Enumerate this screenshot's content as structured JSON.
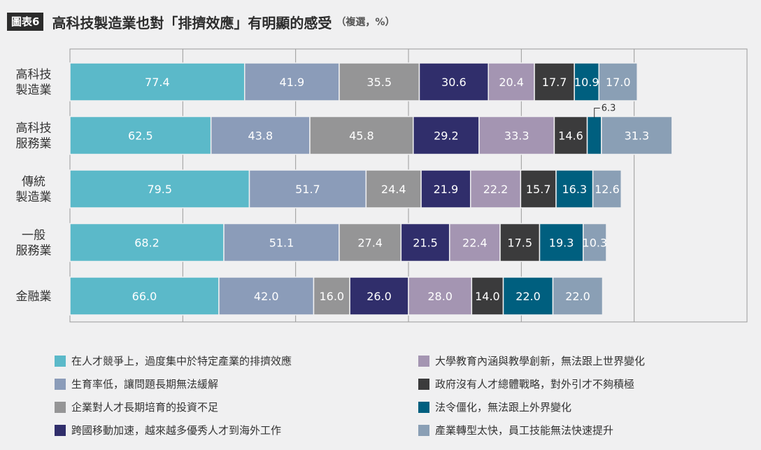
{
  "header": {
    "figure_label": "圖表6",
    "title": "高科技製造業也對「排擠效應」有明顯的感受",
    "subtitle": "（複選，%）"
  },
  "chart_data": {
    "type": "bar",
    "orientation": "horizontal",
    "stacked": true,
    "categories": [
      "高科技\n製造業",
      "高科技\n服務業",
      "傳統\n製造業",
      "一般\n服務業",
      "金融業"
    ],
    "series": [
      {
        "name": "在人才競爭上，過度集中於特定產業的排擠效應",
        "color": "#5bb9c9",
        "values": [
          77.4,
          62.5,
          79.5,
          68.2,
          66.0
        ]
      },
      {
        "name": "生育率低，讓問題長期無法緩解",
        "color": "#8b9cb9",
        "values": [
          41.9,
          43.8,
          51.7,
          51.1,
          42.0
        ]
      },
      {
        "name": "企業對人才長期培育的投資不足",
        "color": "#959596",
        "values": [
          35.5,
          45.8,
          24.4,
          27.4,
          16.0
        ]
      },
      {
        "name": "跨國移動加速，越來越多優秀人才到海外工作",
        "color": "#302e6b",
        "values": [
          30.6,
          29.2,
          21.9,
          21.5,
          26.0
        ]
      },
      {
        "name": "大學教育內涵與教學創新，無法跟上世界變化",
        "color": "#a495b2",
        "values": [
          20.4,
          33.3,
          22.2,
          22.4,
          28.0
        ]
      },
      {
        "name": "政府沒有人才總體戰略，對外引才不夠積極",
        "color": "#3b3b3c",
        "values": [
          17.7,
          14.6,
          15.7,
          17.5,
          14.0
        ]
      },
      {
        "name": "法令僵化，無法跟上外界變化",
        "color": "#005f7f",
        "values": [
          10.9,
          6.3,
          16.3,
          19.3,
          22.0
        ]
      },
      {
        "name": "產業轉型太快，員工技能無法快速提升",
        "color": "#8a9fb5",
        "values": [
          17.0,
          31.3,
          12.6,
          10.3,
          22.0
        ]
      }
    ],
    "value_labels": [
      [
        "77.4",
        "41.9",
        "35.5",
        "30.6",
        "20.4",
        "17.7",
        "10.9",
        "17.0"
      ],
      [
        "62.5",
        "43.8",
        "45.8",
        "29.2",
        "33.3",
        "14.6",
        "6.3",
        "31.3"
      ],
      [
        "79.5",
        "51.7",
        "24.4",
        "21.9",
        "22.2",
        "15.7",
        "16.3",
        "12.6"
      ],
      [
        "68.2",
        "51.1",
        "27.4",
        "21.5",
        "22.4",
        "17.5",
        "19.3",
        "10.3"
      ],
      [
        "66.0",
        "42.0",
        "16.0",
        "26.0",
        "28.0",
        "14.0",
        "22.0",
        "22.0"
      ]
    ],
    "xlim": [
      0,
      300
    ],
    "grid": true,
    "legend_position": "bottom"
  }
}
